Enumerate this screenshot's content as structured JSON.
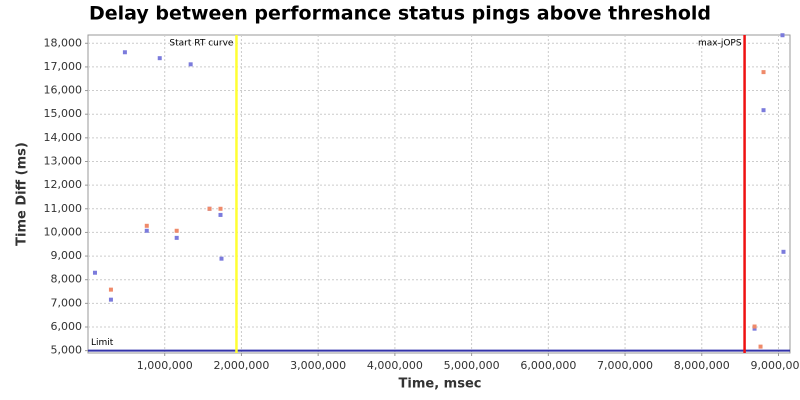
{
  "chart_data": {
    "type": "scatter",
    "title": "Delay between performance status pings above threshold",
    "x_label": "Time, msec",
    "y_label": "Time Diff (ms)",
    "xlim": [
      0,
      9150000
    ],
    "ylim": [
      4900,
      18350
    ],
    "xticks": [
      {
        "value": 1000000,
        "label": "1,000,000"
      },
      {
        "value": 2000000,
        "label": "2,000,000"
      },
      {
        "value": 3000000,
        "label": "3,000,000"
      },
      {
        "value": 4000000,
        "label": "4,000,000"
      },
      {
        "value": 5000000,
        "label": "5,000,000"
      },
      {
        "value": 6000000,
        "label": "6,000,000"
      },
      {
        "value": 7000000,
        "label": "7,000,000"
      },
      {
        "value": 8000000,
        "label": "8,000,000"
      },
      {
        "value": 9000000,
        "label": "9,000,000"
      }
    ],
    "yticks": [
      {
        "value": 5000,
        "label": "5,000"
      },
      {
        "value": 6000,
        "label": "6,000"
      },
      {
        "value": 7000,
        "label": "7,000"
      },
      {
        "value": 8000,
        "label": "8,000"
      },
      {
        "value": 9000,
        "label": "9,000"
      },
      {
        "value": 10000,
        "label": "10,000"
      },
      {
        "value": 11000,
        "label": "11,000"
      },
      {
        "value": 12000,
        "label": "12,000"
      },
      {
        "value": 13000,
        "label": "13,000"
      },
      {
        "value": 14000,
        "label": "14,000"
      },
      {
        "value": 15000,
        "label": "15,000"
      },
      {
        "value": 16000,
        "label": "16,000"
      },
      {
        "value": 17000,
        "label": "17,000"
      },
      {
        "value": 18000,
        "label": "18,000"
      }
    ],
    "grid": true,
    "series": [
      {
        "color": "#7b7bdc",
        "x": [
          91000,
          299000,
          481000,
          766000,
          935000,
          1156000,
          1338000,
          1584000,
          1727000,
          1740000,
          8688000,
          8805000,
          9052000,
          9065000
        ],
        "values": [
          8295,
          7156,
          17620,
          10070,
          17370,
          9770,
          17110,
          11000,
          10740,
          8890,
          5930,
          15170,
          18340,
          9180
        ]
      },
      {
        "color": "#ef8a6a",
        "x": [
          299000,
          766000,
          1156000,
          1584000,
          1727000,
          8688000,
          8766000,
          8805000
        ],
        "values": [
          7580,
          10280,
          10070,
          11000,
          11000,
          6020,
          5170,
          16780
        ]
      }
    ],
    "vlines": [
      {
        "label": "Start RT curve",
        "x": 1935000,
        "color": "#ffff33"
      },
      {
        "label": "max-jOPS",
        "x": 8558000,
        "color": "#ee1111"
      }
    ],
    "hlines": [
      {
        "label": "Limit",
        "y": 5000,
        "color": "#3333aa"
      }
    ]
  }
}
